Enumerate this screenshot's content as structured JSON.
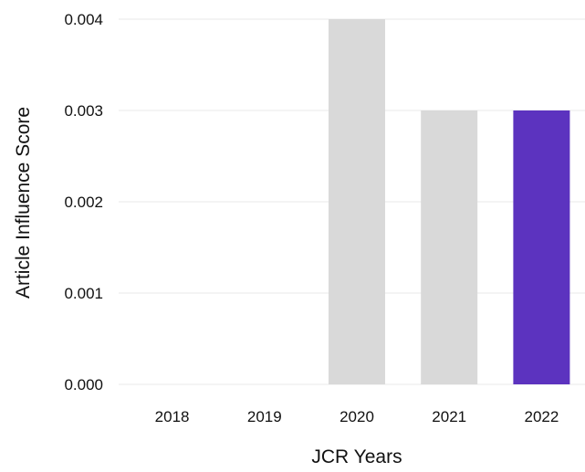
{
  "chart_data": {
    "type": "bar",
    "categories": [
      "2018",
      "2019",
      "2020",
      "2021",
      "2022"
    ],
    "values": [
      0,
      0,
      0.004,
      0.003,
      0.003
    ],
    "title": "",
    "xlabel": "JCR Years",
    "ylabel": "Article Influence Score",
    "ylim": [
      0,
      0.004
    ],
    "yticks": [
      "0.000",
      "0.001",
      "0.002",
      "0.003",
      "0.004"
    ],
    "grid": true,
    "bar_colors": [
      "#d9d9d9",
      "#d9d9d9",
      "#d9d9d9",
      "#d9d9d9",
      "#5c33bf"
    ]
  }
}
